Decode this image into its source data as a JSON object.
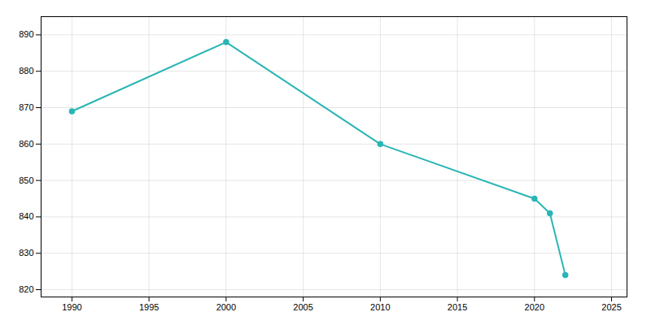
{
  "chart_data": {
    "type": "line",
    "x": [
      1990,
      2000,
      2010,
      2020,
      2021,
      2022
    ],
    "series": [
      {
        "color": "#2ab5b5",
        "marker": "circle",
        "line_style": "solid",
        "values": [
          869,
          888,
          860,
          845,
          841,
          824
        ]
      }
    ],
    "xlim": [
      1988,
      2026
    ],
    "ylim": [
      818,
      895
    ],
    "xticks": [
      1990,
      1995,
      2000,
      2005,
      2010,
      2015,
      2020,
      2025
    ],
    "yticks": [
      820,
      830,
      840,
      850,
      860,
      870,
      880,
      890
    ],
    "grid": true
  }
}
